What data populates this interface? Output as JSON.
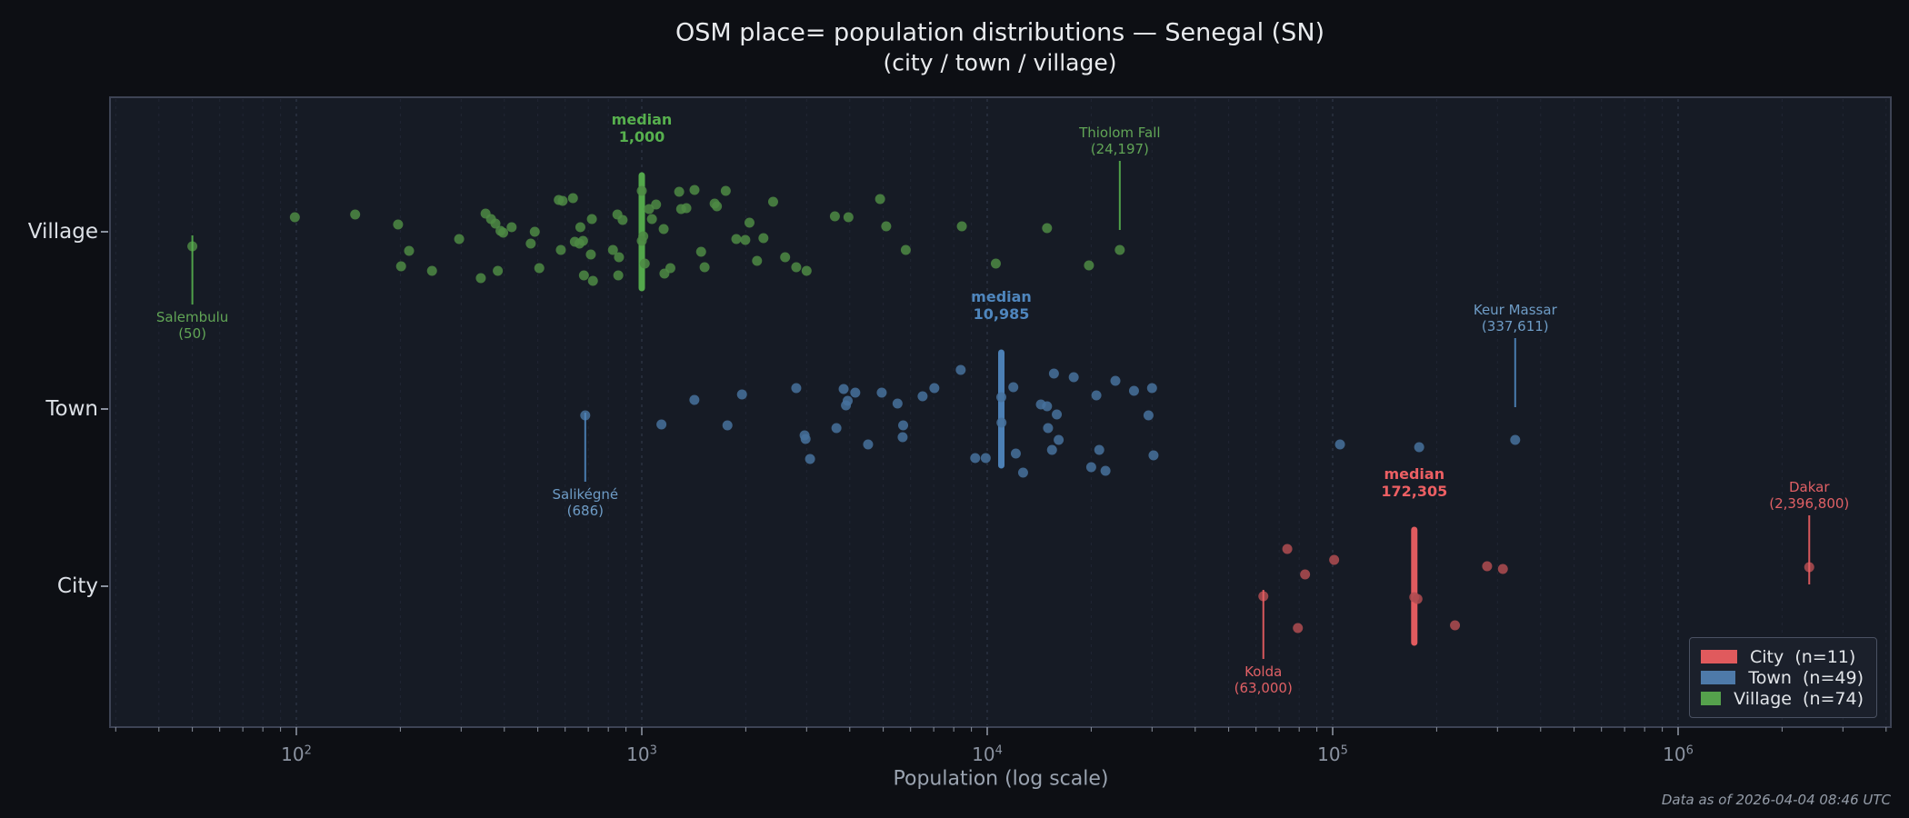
{
  "title": "OSM place= population distributions — Senegal (SN)",
  "subtitle": "(city / town / village)",
  "x_axis": {
    "label": "Population (log scale)",
    "scale": "log",
    "tick_base": "10",
    "tick_exponents": [
      2,
      3,
      4,
      5,
      6
    ]
  },
  "footer": "Data as of 2026-04-04 08:46 UTC",
  "legend": {
    "items": [
      {
        "label": "City  (n=11)",
        "color": "#e05a5d"
      },
      {
        "label": "Town  (n=49)",
        "color": "#4e7aa9"
      },
      {
        "label": "Village  (n=74)",
        "color": "#55a14c"
      }
    ]
  },
  "chart_data": {
    "type": "scatter",
    "x_scale": "log",
    "xlim": [
      29,
      4150000
    ],
    "categories": [
      "Village",
      "Town",
      "City"
    ],
    "median_word": "median",
    "series": [
      {
        "name": "Village",
        "n": 74,
        "color": "#57b04e",
        "dot_color": "#4d8a44",
        "text_color": "#61a556",
        "median": 1000,
        "median_label": "1,000",
        "points": [
          [
            50,
            16
          ],
          [
            99,
            -16
          ],
          [
            148,
            -19
          ],
          [
            197,
            -8
          ],
          [
            201,
            38
          ],
          [
            212,
            21
          ],
          [
            247,
            43
          ],
          [
            296,
            8
          ],
          [
            342,
            51
          ],
          [
            353,
            -20
          ],
          [
            366,
            -14
          ],
          [
            377,
            -9
          ],
          [
            383,
            43
          ],
          [
            390,
            -1
          ],
          [
            397,
            1
          ],
          [
            420,
            -5
          ],
          [
            477,
            13
          ],
          [
            490,
            0
          ],
          [
            505,
            40
          ],
          [
            575,
            -35
          ],
          [
            583,
            20
          ],
          [
            590,
            -34
          ],
          [
            632,
            -37
          ],
          [
            640,
            11
          ],
          [
            660,
            13
          ],
          [
            664,
            -5
          ],
          [
            676,
            10
          ],
          [
            680,
            48
          ],
          [
            712,
            25
          ],
          [
            717,
            -14
          ],
          [
            722,
            54
          ],
          [
            825,
            20
          ],
          [
            850,
            -19
          ],
          [
            855,
            48
          ],
          [
            859,
            28
          ],
          [
            880,
            -13
          ],
          [
            1000,
            -45
          ],
          [
            1000,
            10
          ],
          [
            1010,
            5
          ],
          [
            1020,
            35
          ],
          [
            1050,
            -25
          ],
          [
            1070,
            -14
          ],
          [
            1100,
            -30
          ],
          [
            1157,
            -3
          ],
          [
            1163,
            46
          ],
          [
            1210,
            40
          ],
          [
            1283,
            -44
          ],
          [
            1300,
            -25
          ],
          [
            1346,
            -26
          ],
          [
            1421,
            -46
          ],
          [
            1485,
            22
          ],
          [
            1520,
            39
          ],
          [
            1625,
            -31
          ],
          [
            1650,
            -28
          ],
          [
            1750,
            -45
          ],
          [
            1878,
            8
          ],
          [
            1994,
            9
          ],
          [
            2050,
            -10
          ],
          [
            2156,
            32
          ],
          [
            2250,
            7
          ],
          [
            2400,
            -33
          ],
          [
            2600,
            28
          ],
          [
            2800,
            39
          ],
          [
            3000,
            43
          ],
          [
            3622,
            -17
          ],
          [
            3965,
            -16
          ],
          [
            4896,
            -36
          ],
          [
            5100,
            -6
          ],
          [
            5811,
            20
          ],
          [
            8443,
            -6
          ],
          [
            10590,
            35
          ],
          [
            14900,
            -4
          ],
          [
            19700,
            37
          ],
          [
            24197,
            20
          ]
        ]
      },
      {
        "name": "Town",
        "n": 49,
        "color": "#4f86bd",
        "dot_color": "#46719c",
        "text_color": "#6e9cc6",
        "median": 10985,
        "median_label": "10,985",
        "points": [
          [
            686,
            7
          ],
          [
            1140,
            17
          ],
          [
            1420,
            -10
          ],
          [
            1770,
            18
          ],
          [
            1950,
            -16
          ],
          [
            2800,
            -23
          ],
          [
            2960,
            29
          ],
          [
            2980,
            33
          ],
          [
            3070,
            55
          ],
          [
            3660,
            21
          ],
          [
            3840,
            -22
          ],
          [
            3900,
            -4
          ],
          [
            3945,
            -9
          ],
          [
            4150,
            -18
          ],
          [
            4520,
            39
          ],
          [
            4950,
            -18
          ],
          [
            5500,
            -6
          ],
          [
            5690,
            31
          ],
          [
            5710,
            18
          ],
          [
            6500,
            -14
          ],
          [
            7030,
            -23
          ],
          [
            8380,
            -43
          ],
          [
            9230,
            54
          ],
          [
            9900,
            54
          ],
          [
            10985,
            -13
          ],
          [
            11000,
            15
          ],
          [
            11900,
            -24
          ],
          [
            12100,
            49
          ],
          [
            12700,
            70
          ],
          [
            14300,
            -5
          ],
          [
            14900,
            -3
          ],
          [
            15000,
            21
          ],
          [
            15400,
            45
          ],
          [
            15600,
            -39
          ],
          [
            15900,
            6
          ],
          [
            16100,
            34
          ],
          [
            17800,
            -35
          ],
          [
            20000,
            64
          ],
          [
            20700,
            -15
          ],
          [
            21100,
            45
          ],
          [
            22000,
            68
          ],
          [
            23500,
            -31
          ],
          [
            26600,
            -20
          ],
          [
            29300,
            7
          ],
          [
            30000,
            -23
          ],
          [
            30300,
            51
          ],
          [
            105000,
            39
          ],
          [
            178000,
            42
          ],
          [
            337611,
            34
          ]
        ]
      },
      {
        "name": "City",
        "n": 11,
        "color": "#ec5f63",
        "dot_color": "#b04c51",
        "text_color": "#e06065",
        "median": 172305,
        "median_label": "172,305",
        "points": [
          [
            63000,
            11
          ],
          [
            73900,
            -41
          ],
          [
            79300,
            46
          ],
          [
            83200,
            -13
          ],
          [
            101000,
            -29
          ],
          [
            172305,
            12
          ],
          [
            176000,
            14
          ],
          [
            226000,
            43
          ],
          [
            280000,
            -22
          ],
          [
            311000,
            -19
          ],
          [
            2396800,
            -21
          ]
        ]
      }
    ],
    "annotations": [
      {
        "name": "Salembulu",
        "value": 50,
        "value_label": "(50)",
        "series": "Village",
        "label_position": "below"
      },
      {
        "name": "Thiolom Fall",
        "value": 24197,
        "value_label": "(24,197)",
        "series": "Village",
        "label_position": "above"
      },
      {
        "name": "Salikégné",
        "value": 686,
        "value_label": "(686)",
        "series": "Town",
        "label_position": "below"
      },
      {
        "name": "Keur Massar",
        "value": 337611,
        "value_label": "(337,611)",
        "series": "Town",
        "label_position": "above"
      },
      {
        "name": "Kolda",
        "value": 63000,
        "value_label": "(63,000)",
        "series": "City",
        "label_position": "below"
      },
      {
        "name": "Dakar",
        "value": 2396800,
        "value_label": "(2,396,800)",
        "series": "City",
        "label_position": "above"
      }
    ]
  }
}
